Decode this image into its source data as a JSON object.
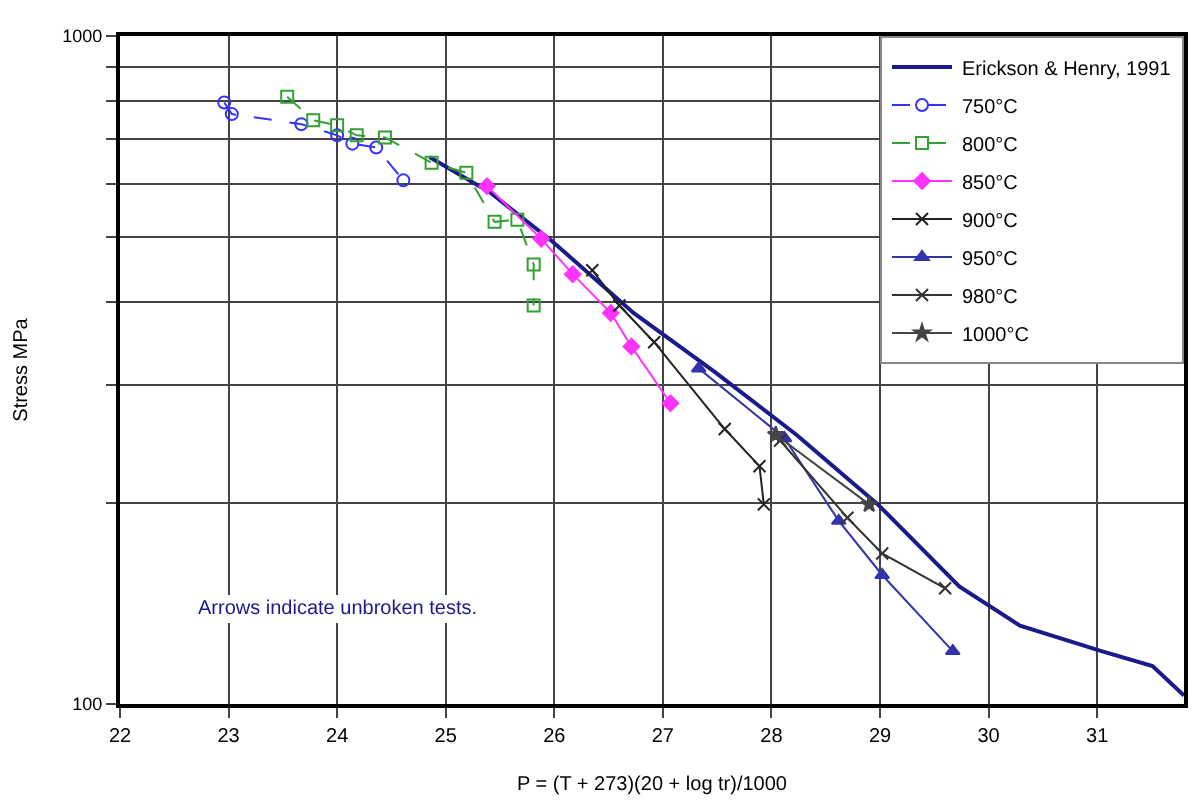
{
  "chart_data": {
    "type": "line",
    "xlabel": "P = (T + 273)(20 + log tr)/1000",
    "ylabel": "Stress MPa",
    "log": "y",
    "grid": true,
    "legend": "top right",
    "xlim": [
      22,
      31.8
    ],
    "xticks": [
      22,
      23,
      24,
      25,
      26,
      27,
      28,
      29,
      30,
      31
    ],
    "ylim": [
      100,
      1000
    ],
    "yticks": [
      100,
      {
        "value": 200,
        "label": null
      },
      {
        "value": 300,
        "label": null
      },
      {
        "value": 400,
        "label": null
      },
      {
        "value": 500,
        "label": null
      },
      {
        "value": 600,
        "label": null
      },
      {
        "value": 700,
        "label": null
      },
      {
        "value": 800,
        "label": null
      },
      {
        "value": 900,
        "label": null
      },
      1000
    ],
    "annotations": [
      "Arrows indicate unbroken tests."
    ],
    "series": [
      {
        "name": "Erickson & Henry, 1991",
        "color": "#1a1a8c",
        "marker": "none",
        "line_style": "solid",
        "x": [
          24.85,
          25.41,
          25.98,
          26.73,
          27.48,
          28.23,
          28.98,
          29.73,
          30.29,
          31.04,
          31.51,
          31.8
        ],
        "values": [
          659,
          583,
          493,
          385,
          314,
          253,
          199,
          150,
          131,
          120,
          114,
          103
        ]
      },
      {
        "name": "750°C",
        "color": "#3333ff",
        "marker": "circle",
        "line_style": "dashed",
        "x": [
          22.96,
          23.03,
          23.67,
          24.0,
          24.14,
          24.36,
          24.61
        ],
        "values": [
          795,
          764,
          738,
          710,
          690,
          681,
          608
        ]
      },
      {
        "name": "800°C",
        "color": "#33a033",
        "marker": "square",
        "line_style": "dashed",
        "x": [
          23.54,
          23.78,
          24.0,
          24.18,
          24.44,
          24.87,
          25.19,
          25.45,
          25.66,
          25.81,
          25.81
        ],
        "values": [
          811,
          748,
          735,
          710,
          705,
          646,
          624,
          527,
          531,
          455,
          395
        ]
      },
      {
        "name": "850°C",
        "color": "#ff33ff",
        "marker": "diamond",
        "line_style": "solid",
        "x": [
          25.38,
          25.88,
          26.17,
          26.52,
          26.71,
          27.07
        ],
        "values": [
          596,
          497,
          440,
          385,
          343,
          282
        ]
      },
      {
        "name": "900°C",
        "color": "#222222",
        "marker": "cross",
        "line_style": "solid",
        "x": [
          26.35,
          26.6,
          26.92,
          27.57,
          27.89,
          27.93
        ],
        "values": [
          446,
          395,
          348,
          258,
          227,
          199
        ]
      },
      {
        "name": "950°C",
        "color": "#3333aa",
        "marker": "triangle",
        "line_style": "solid",
        "x": [
          27.33,
          28.12,
          28.62,
          29.02,
          29.67
        ],
        "values": [
          318,
          250,
          188,
          156,
          120
        ]
      },
      {
        "name": "980°C",
        "color": "#333333",
        "marker": "cross",
        "line_style": "solid",
        "x": [
          28.08,
          28.7,
          29.02,
          29.6
        ],
        "values": [
          248,
          190,
          168,
          149
        ]
      },
      {
        "name": "1000°C",
        "color": "#444444",
        "marker": "star",
        "line_style": "solid",
        "x": [
          28.04,
          28.9
        ],
        "values": [
          253,
          199
        ]
      }
    ]
  }
}
